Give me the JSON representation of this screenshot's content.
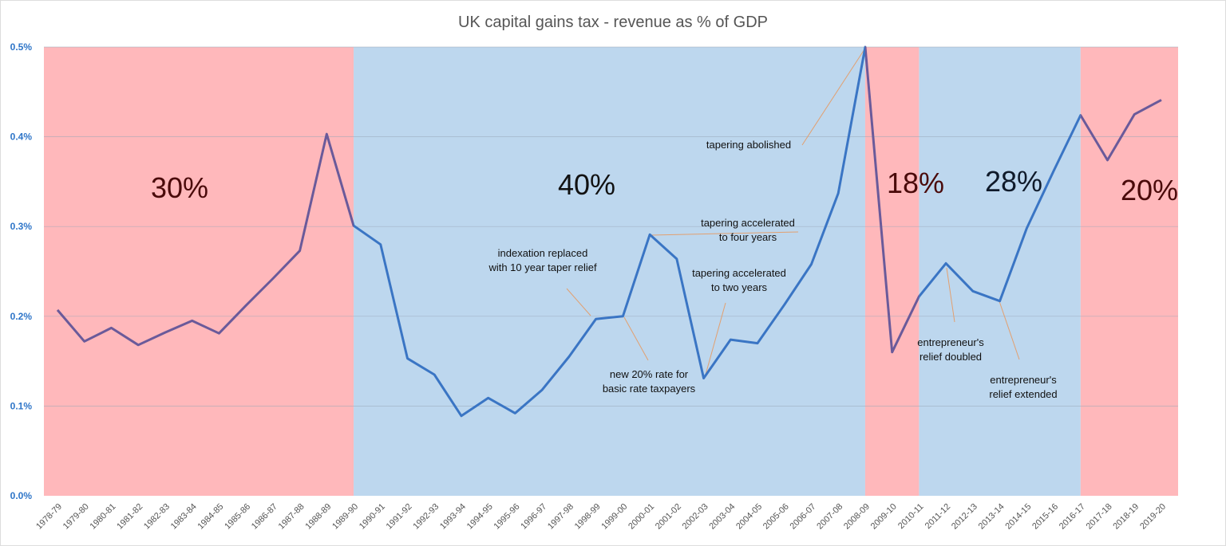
{
  "chart_data": {
    "type": "line",
    "title": "UK capital gains tax - revenue as % of GDP",
    "xlabel": "",
    "ylabel": "",
    "ylim": [
      0,
      0.5
    ],
    "yticks": [
      "0.0%",
      "0.1%",
      "0.2%",
      "0.3%",
      "0.4%",
      "0.5%"
    ],
    "grid": true,
    "categories": [
      "1978-79",
      "1979-80",
      "1980-81",
      "1981-82",
      "1982-83",
      "1983-84",
      "1984-85",
      "1985-86",
      "1986-87",
      "1987-88",
      "1988-89",
      "1989-90",
      "1990-91",
      "1991-92",
      "1992-93",
      "1993-94",
      "1994-95",
      "1995-96",
      "1996-97",
      "1997-98",
      "1998-99",
      "1999-00",
      "2000-01",
      "2001-02",
      "2002-03",
      "2003-04",
      "2004-05",
      "2005-06",
      "2006-07",
      "2007-08",
      "2008-09",
      "2009-10",
      "2010-11",
      "2011-12",
      "2012-13",
      "2013-14",
      "2014-15",
      "2015-16",
      "2016-17",
      "2017-18",
      "2018-19",
      "2019-20"
    ],
    "values": [
      0.207,
      0.172,
      0.187,
      0.168,
      0.182,
      0.195,
      0.181,
      0.212,
      0.242,
      0.273,
      0.403,
      0.301,
      0.28,
      0.153,
      0.135,
      0.089,
      0.109,
      0.092,
      0.118,
      0.155,
      0.197,
      0.2,
      0.291,
      0.264,
      0.131,
      0.174,
      0.17,
      0.213,
      0.258,
      0.337,
      0.5,
      0.16,
      0.222,
      0.259,
      0.228,
      0.217,
      0.298,
      0.362,
      0.424,
      0.374,
      0.425,
      0.441
    ],
    "bands": [
      {
        "label": "30%",
        "from": null,
        "to": "1989-90",
        "color": "#FFB8BB",
        "text_color": "#4A0A0A"
      },
      {
        "label": "40%",
        "from": "1989-90",
        "to": "2008-09",
        "color": "#BDD7EE",
        "text_color": "#111111"
      },
      {
        "label": "18%",
        "from": "2008-09",
        "to": "2010-11",
        "color": "#FFB8BB",
        "text_color": "#4A0A0A"
      },
      {
        "label": "28%",
        "from": "2010-11",
        "to": "2016-17",
        "color": "#BDD7EE",
        "text_color": "#0F1A2A"
      },
      {
        "label": "20%",
        "from": "2016-17",
        "to": null,
        "color": "#FFB8BB",
        "text_color": "#4A0A0A"
      }
    ],
    "line_colors": {
      "on_blue": "#3A75C4",
      "on_red": "#6A5A9A"
    },
    "annotations": [
      {
        "lines": [
          "indexation replaced",
          "with 10 year taper relief"
        ],
        "target": "1998-99"
      },
      {
        "lines": [
          "new 20% rate for",
          "basic rate taxpayers"
        ],
        "target": "1999-00"
      },
      {
        "lines": [
          "tapering accelerated",
          "to four years"
        ],
        "target": "2000-01"
      },
      {
        "lines": [
          "tapering accelerated",
          "to two years"
        ],
        "target": "2002-03"
      },
      {
        "lines": [
          "tapering abolished"
        ],
        "target": "2008-09"
      },
      {
        "lines": [
          "entrepreneur's",
          "relief doubled"
        ],
        "target": "2011-12"
      },
      {
        "lines": [
          "entrepreneur's",
          "relief extended"
        ],
        "target": "2013-14"
      }
    ]
  }
}
